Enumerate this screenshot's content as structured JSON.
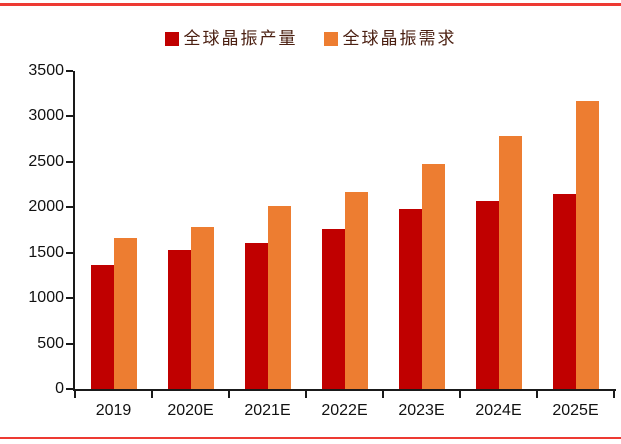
{
  "chart_data": {
    "type": "bar",
    "categories": [
      "2019",
      "2020E",
      "2021E",
      "2022E",
      "2023E",
      "2024E",
      "2025E"
    ],
    "series": [
      {
        "name": "全球晶振产量",
        "color": "#C00000",
        "values": [
          1360,
          1530,
          1610,
          1760,
          1980,
          2070,
          2150
        ]
      },
      {
        "name": "全球晶振需求",
        "color": "#ED7D31",
        "values": [
          1660,
          1780,
          2010,
          2170,
          2480,
          2780,
          3170
        ]
      }
    ],
    "title": "",
    "xlabel": "",
    "ylabel": "",
    "ylim": [
      0,
      3500
    ],
    "yticks": [
      0,
      500,
      1000,
      1500,
      2000,
      2500,
      3000,
      3500
    ],
    "grid": false,
    "legend_position": "top-center",
    "bar_layout": "grouped"
  },
  "styles": {
    "accent_line_color": "#ED3A33",
    "axis_color": "#1a1a1a",
    "tick_label_color": "#111111",
    "legend_text_color": "#4B2012",
    "background_color": "#FFFFFF"
  }
}
